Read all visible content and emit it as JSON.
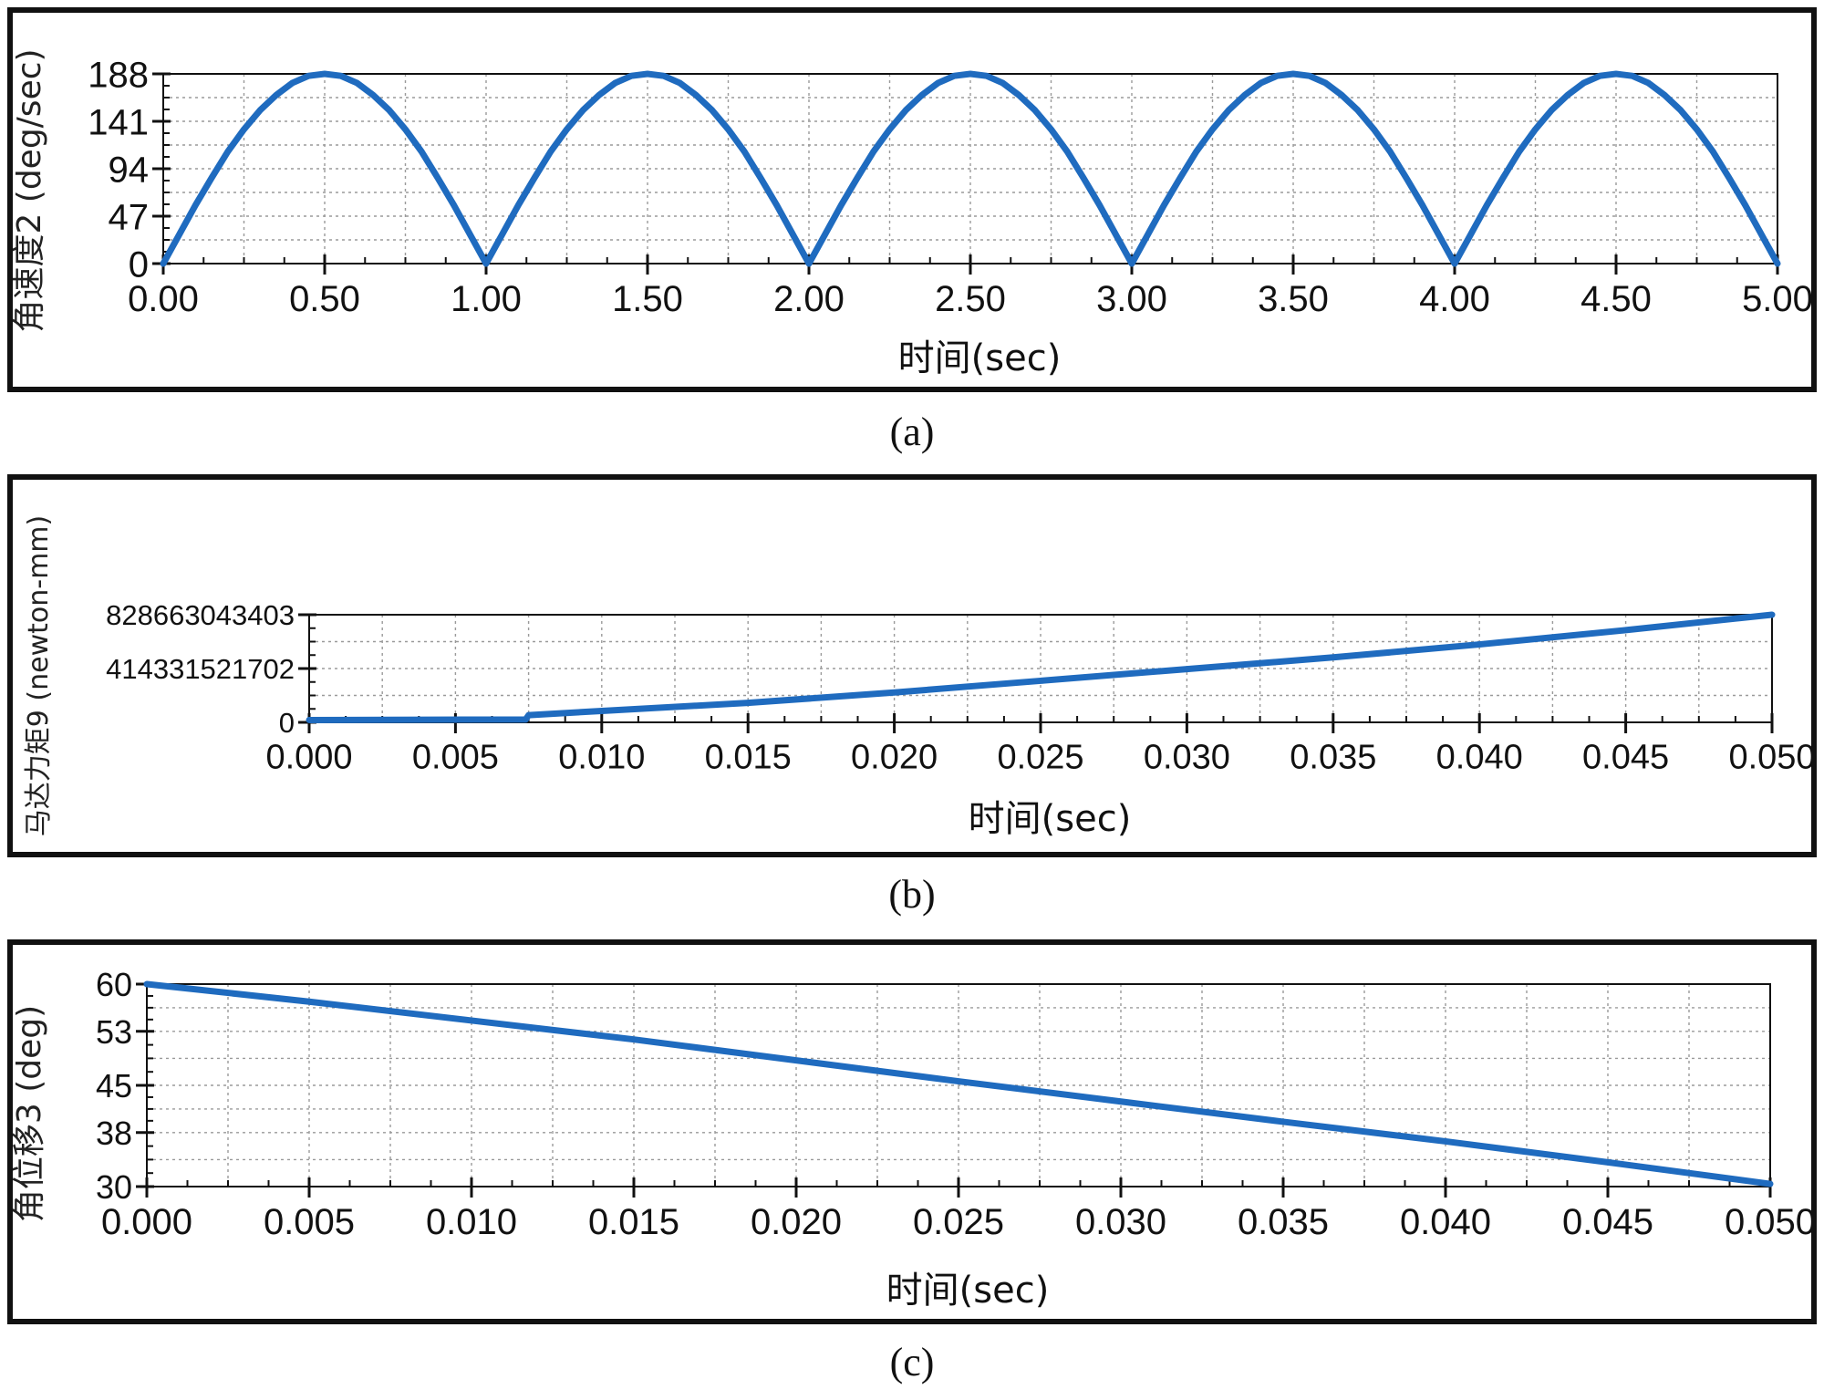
{
  "chart_data": [
    {
      "type": "line",
      "id": "a",
      "caption": "(a)",
      "xlabel": "时间(sec)",
      "ylabel": "角速度2 (deg/sec)",
      "xlim": [
        0,
        5
      ],
      "ylim": [
        0,
        188
      ],
      "xticks": [
        0,
        0.5,
        1,
        1.5,
        2,
        2.5,
        3,
        3.5,
        4,
        4.5,
        5
      ],
      "xtick_labels": [
        "0.00",
        "0.50",
        "1.00",
        "1.50",
        "2.00",
        "2.50",
        "3.00",
        "3.50",
        "4.00",
        "4.50",
        "5.00"
      ],
      "yticks": [
        0,
        47,
        94,
        141,
        188
      ],
      "ytick_labels": [
        "0",
        "47",
        "94",
        "141",
        "188"
      ],
      "grid": true,
      "series": [
        {
          "color": "#1f6bbf",
          "x": [
            0,
            0.05,
            0.1,
            0.15,
            0.2,
            0.25,
            0.3,
            0.35,
            0.4,
            0.45,
            0.5,
            0.55,
            0.6,
            0.65,
            0.7,
            0.75,
            0.8,
            0.85,
            0.9,
            0.95,
            1.0,
            1.05,
            1.1,
            1.15,
            1.2,
            1.25,
            1.3,
            1.35,
            1.4,
            1.45,
            1.5,
            1.55,
            1.6,
            1.65,
            1.7,
            1.75,
            1.8,
            1.85,
            1.9,
            1.95,
            2.0,
            2.05,
            2.1,
            2.15,
            2.2,
            2.25,
            2.3,
            2.35,
            2.4,
            2.45,
            2.5,
            2.55,
            2.6,
            2.65,
            2.7,
            2.75,
            2.8,
            2.85,
            2.9,
            2.95,
            3.0,
            3.05,
            3.1,
            3.15,
            3.2,
            3.25,
            3.3,
            3.35,
            3.4,
            3.45,
            3.5,
            3.55,
            3.6,
            3.65,
            3.7,
            3.75,
            3.8,
            3.85,
            3.9,
            3.95,
            4.0,
            4.05,
            4.1,
            4.15,
            4.2,
            4.25,
            4.3,
            4.35,
            4.4,
            4.45,
            4.5,
            4.55,
            4.6,
            4.65,
            4.7,
            4.75,
            4.8,
            4.85,
            4.9,
            4.95,
            5.0
          ],
          "y": [
            0,
            29,
            58,
            85,
            111,
            133,
            152,
            167,
            179,
            186,
            188,
            186,
            179,
            167,
            152,
            133,
            111,
            85,
            58,
            29,
            0,
            29,
            58,
            85,
            111,
            133,
            152,
            167,
            179,
            186,
            188,
            186,
            179,
            167,
            152,
            133,
            111,
            85,
            58,
            29,
            0,
            29,
            58,
            85,
            111,
            133,
            152,
            167,
            179,
            186,
            188,
            186,
            179,
            167,
            152,
            133,
            111,
            85,
            58,
            29,
            0,
            29,
            58,
            85,
            111,
            133,
            152,
            167,
            179,
            186,
            188,
            186,
            179,
            167,
            152,
            133,
            111,
            85,
            58,
            29,
            0,
            29,
            58,
            85,
            111,
            133,
            152,
            167,
            179,
            186,
            188,
            186,
            179,
            167,
            152,
            133,
            111,
            85,
            58,
            29,
            0
          ]
        }
      ]
    },
    {
      "type": "line",
      "id": "b",
      "caption": "(b)",
      "xlabel": "时间(sec)",
      "ylabel": "马达力矩9 (newton-mm)",
      "xlim": [
        0,
        0.05
      ],
      "ylim": [
        0,
        828663043403
      ],
      "xticks": [
        0,
        0.005,
        0.01,
        0.015,
        0.02,
        0.025,
        0.03,
        0.035,
        0.04,
        0.045,
        0.05
      ],
      "xtick_labels": [
        "0.000",
        "0.005",
        "0.010",
        "0.015",
        "0.020",
        "0.025",
        "0.030",
        "0.035",
        "0.040",
        "0.045",
        "0.050"
      ],
      "yticks": [
        0,
        414331521702,
        828663043403
      ],
      "ytick_labels": [
        "0",
        "414331521702",
        "828663043403"
      ],
      "grid": true,
      "series": [
        {
          "color": "#1f6bbf",
          "x": [
            0,
            0.0074,
            0.0075,
            0.01,
            0.015,
            0.02,
            0.025,
            0.03,
            0.035,
            0.04,
            0.045,
            0.05
          ],
          "y": [
            18000000000,
            22000000000,
            55000000000,
            88000000000,
            150000000000,
            230000000000,
            320000000000,
            410000000000,
            500000000000,
            600000000000,
            710000000000,
            828663043403
          ]
        }
      ]
    },
    {
      "type": "line",
      "id": "c",
      "caption": "(c)",
      "xlabel": "时间(sec)",
      "ylabel": "角位移3 (deg)",
      "xlim": [
        0,
        0.05
      ],
      "ylim": [
        30,
        60
      ],
      "xticks": [
        0,
        0.005,
        0.01,
        0.015,
        0.02,
        0.025,
        0.03,
        0.035,
        0.04,
        0.045,
        0.05
      ],
      "xtick_labels": [
        "0.000",
        "0.005",
        "0.010",
        "0.015",
        "0.020",
        "0.025",
        "0.030",
        "0.035",
        "0.040",
        "0.045",
        "0.050"
      ],
      "yticks": [
        30,
        38,
        45,
        53,
        60
      ],
      "ytick_labels": [
        "30",
        "38",
        "45",
        "53",
        "60"
      ],
      "grid": true,
      "series": [
        {
          "color": "#1f6bbf",
          "x": [
            0,
            0.005,
            0.01,
            0.015,
            0.02,
            0.025,
            0.03,
            0.035,
            0.04,
            0.045,
            0.05
          ],
          "y": [
            60,
            57.4,
            54.6,
            51.8,
            48.7,
            45.6,
            42.6,
            39.6,
            36.7,
            33.6,
            30.4
          ]
        }
      ]
    }
  ]
}
